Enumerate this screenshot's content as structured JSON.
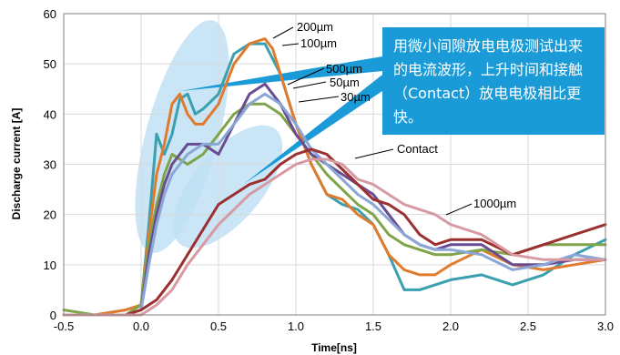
{
  "chart_data": {
    "type": "line",
    "xlabel": "Time[ns]",
    "ylabel": "Discharge current [A]",
    "xlim": [
      -0.5,
      3.0
    ],
    "ylim": [
      0,
      60
    ],
    "x_ticks": [
      "-0.5",
      "0.0",
      "0.5",
      "1.0",
      "1.5",
      "2.0",
      "2.5",
      "3.0"
    ],
    "y_ticks": [
      "0",
      "10",
      "20",
      "30",
      "40",
      "50",
      "60"
    ],
    "grid": true,
    "series": [
      {
        "name": "200µm",
        "color": "#3a9fae",
        "x": [
          -0.5,
          -0.3,
          -0.1,
          0.0,
          0.05,
          0.1,
          0.15,
          0.2,
          0.25,
          0.3,
          0.35,
          0.4,
          0.5,
          0.6,
          0.7,
          0.8,
          0.9,
          1.0,
          1.1,
          1.2,
          1.3,
          1.4,
          1.5,
          1.6,
          1.7,
          1.8,
          1.9,
          2.0,
          2.2,
          2.4,
          2.6,
          2.8,
          3.0
        ],
        "y": [
          0,
          0,
          1,
          2,
          18,
          36,
          32,
          36,
          43,
          44,
          40,
          41,
          44,
          52,
          54,
          54,
          48,
          38,
          30,
          24,
          22,
          21,
          18,
          12,
          5,
          5,
          6,
          7,
          8,
          6,
          8,
          12,
          15
        ]
      },
      {
        "name": "100µm",
        "color": "#e07b2e",
        "x": [
          -0.5,
          -0.3,
          -0.1,
          0.0,
          0.05,
          0.1,
          0.15,
          0.2,
          0.25,
          0.3,
          0.35,
          0.4,
          0.5,
          0.6,
          0.7,
          0.8,
          0.85,
          0.9,
          1.0,
          1.1,
          1.2,
          1.3,
          1.4,
          1.5,
          1.6,
          1.7,
          1.8,
          1.9,
          2.0,
          2.2,
          2.4,
          2.6,
          2.8,
          3.0
        ],
        "y": [
          0,
          0,
          1,
          2,
          16,
          28,
          34,
          42,
          44,
          40,
          38,
          38,
          42,
          50,
          54,
          55,
          53,
          48,
          38,
          30,
          24,
          23,
          20,
          18,
          12,
          9,
          8,
          8,
          10,
          13,
          10,
          9,
          10,
          11
        ]
      },
      {
        "name": "500µm",
        "color": "#7fa44a",
        "x": [
          -0.5,
          -0.3,
          -0.1,
          0.0,
          0.05,
          0.1,
          0.15,
          0.2,
          0.3,
          0.4,
          0.5,
          0.6,
          0.7,
          0.8,
          0.9,
          1.0,
          1.1,
          1.2,
          1.3,
          1.4,
          1.5,
          1.6,
          1.7,
          1.8,
          1.9,
          2.0,
          2.2,
          2.4,
          2.6,
          2.8,
          3.0
        ],
        "y": [
          1,
          0,
          0,
          2,
          14,
          22,
          28,
          32,
          30,
          32,
          36,
          40,
          42,
          42,
          40,
          36,
          32,
          28,
          25,
          22,
          20,
          16,
          14,
          13,
          12,
          12,
          13,
          12,
          14,
          14,
          14
        ]
      },
      {
        "name": "50µm",
        "color": "#6a4c93",
        "x": [
          -0.5,
          -0.3,
          -0.1,
          0.0,
          0.05,
          0.1,
          0.15,
          0.2,
          0.3,
          0.4,
          0.5,
          0.6,
          0.7,
          0.8,
          0.9,
          1.0,
          1.1,
          1.2,
          1.3,
          1.4,
          1.5,
          1.6,
          1.7,
          1.8,
          1.9,
          2.0,
          2.2,
          2.4,
          2.6,
          2.8,
          3.0
        ],
        "y": [
          0,
          0,
          0,
          1,
          12,
          20,
          26,
          30,
          34,
          34,
          32,
          38,
          44,
          46,
          42,
          36,
          32,
          30,
          28,
          26,
          24,
          20,
          16,
          14,
          13,
          14,
          14,
          10,
          10,
          11,
          11
        ]
      },
      {
        "name": "30µm",
        "color": "#8aa6d6",
        "x": [
          -0.5,
          -0.3,
          -0.1,
          0.0,
          0.05,
          0.1,
          0.15,
          0.2,
          0.3,
          0.4,
          0.5,
          0.6,
          0.7,
          0.8,
          0.9,
          1.0,
          1.1,
          1.2,
          1.3,
          1.4,
          1.5,
          1.6,
          1.7,
          1.8,
          1.9,
          2.0,
          2.2,
          2.4,
          2.6,
          2.8,
          3.0
        ],
        "y": [
          0,
          0,
          0,
          1,
          10,
          18,
          24,
          28,
          32,
          34,
          34,
          38,
          42,
          44,
          42,
          38,
          33,
          30,
          27,
          24,
          22,
          19,
          16,
          14,
          13,
          13,
          12,
          9,
          10,
          12,
          11
        ]
      },
      {
        "name": "Contact",
        "color": "#9c2f2f",
        "x": [
          -0.5,
          -0.3,
          -0.1,
          0.0,
          0.1,
          0.2,
          0.3,
          0.4,
          0.5,
          0.6,
          0.7,
          0.8,
          0.9,
          1.0,
          1.1,
          1.2,
          1.3,
          1.4,
          1.5,
          1.6,
          1.7,
          1.8,
          1.9,
          2.0,
          2.2,
          2.4,
          2.6,
          2.8,
          3.0
        ],
        "y": [
          0,
          0,
          0,
          1,
          3,
          7,
          12,
          17,
          22,
          24,
          26,
          27,
          30,
          32,
          33,
          32,
          29,
          26,
          23,
          22,
          20,
          16,
          14,
          15,
          15,
          12,
          14,
          16,
          18
        ]
      },
      {
        "name": "1000µm",
        "color": "#d79aa3",
        "x": [
          -0.5,
          -0.3,
          -0.1,
          0.0,
          0.1,
          0.2,
          0.3,
          0.4,
          0.5,
          0.6,
          0.7,
          0.8,
          0.9,
          1.0,
          1.1,
          1.2,
          1.3,
          1.4,
          1.5,
          1.6,
          1.7,
          1.8,
          1.9,
          2.0,
          2.2,
          2.4,
          2.6,
          2.8,
          3.0
        ],
        "y": [
          0,
          0,
          0,
          0,
          2,
          5,
          10,
          14,
          18,
          21,
          24,
          26,
          28,
          30,
          31,
          31,
          30,
          27,
          26,
          24,
          22,
          21,
          20,
          18,
          16,
          12,
          11,
          11,
          11
        ]
      }
    ],
    "annotations": {
      "callout": "用微小间隙放电电极测试出来的电流波形，上升时间和接触（Contact）放电电极相比更快。",
      "labels": [
        "200µm",
        "100µm",
        "500µm",
        "50µm",
        "30µm",
        "Contact",
        "1000µm"
      ]
    }
  }
}
